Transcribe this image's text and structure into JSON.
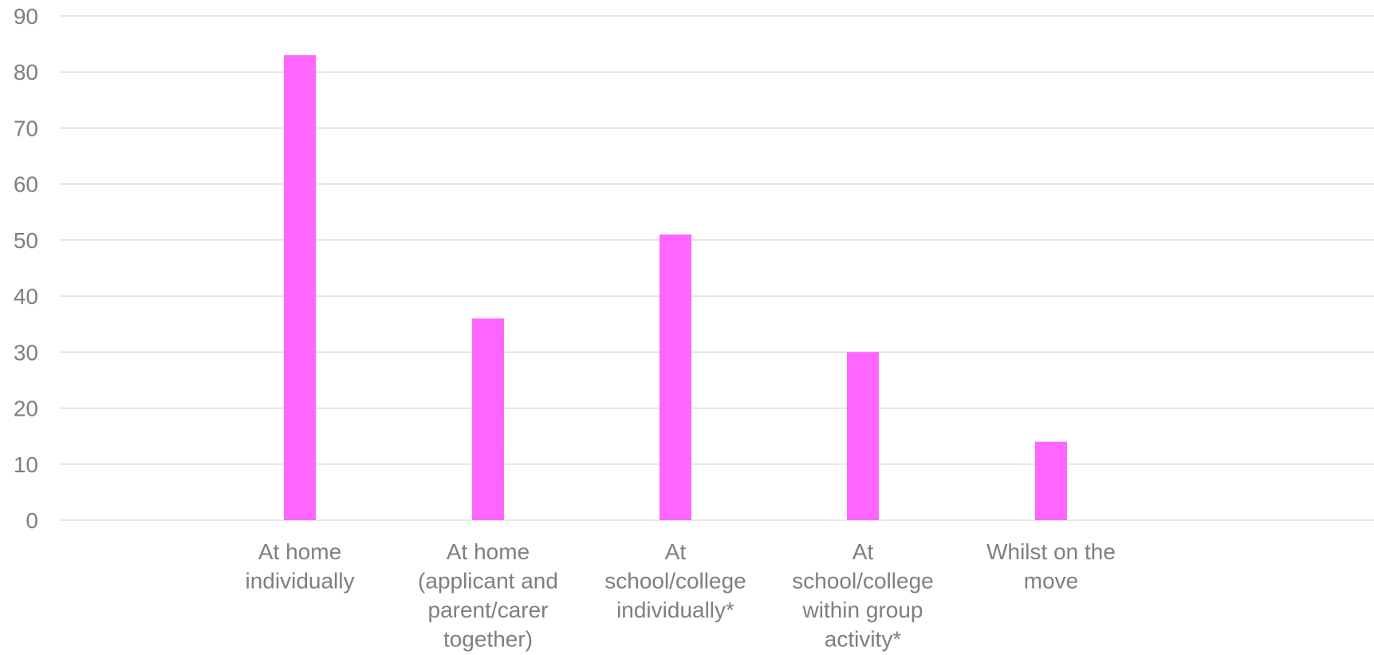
{
  "chart_data": {
    "type": "bar",
    "categories": [
      [
        "At home",
        "individually"
      ],
      [
        "At home",
        "(applicant and",
        "parent/carer",
        "together)"
      ],
      [
        "At",
        "school/college",
        "individually*"
      ],
      [
        "At",
        "school/college",
        "within group",
        "activity*"
      ],
      [
        "Whilst on the",
        "move"
      ]
    ],
    "values": [
      83,
      36,
      51,
      30,
      14
    ],
    "ylim": [
      0,
      90
    ],
    "yticks": [
      0,
      10,
      20,
      30,
      40,
      50,
      60,
      70,
      80,
      90
    ],
    "grid": true,
    "legend": "none",
    "title": "",
    "xlabel": "",
    "ylabel": "",
    "colors": {
      "bar": "#ff66ff",
      "grid": "#d9d9d9",
      "text": "#7f7f7f"
    }
  }
}
